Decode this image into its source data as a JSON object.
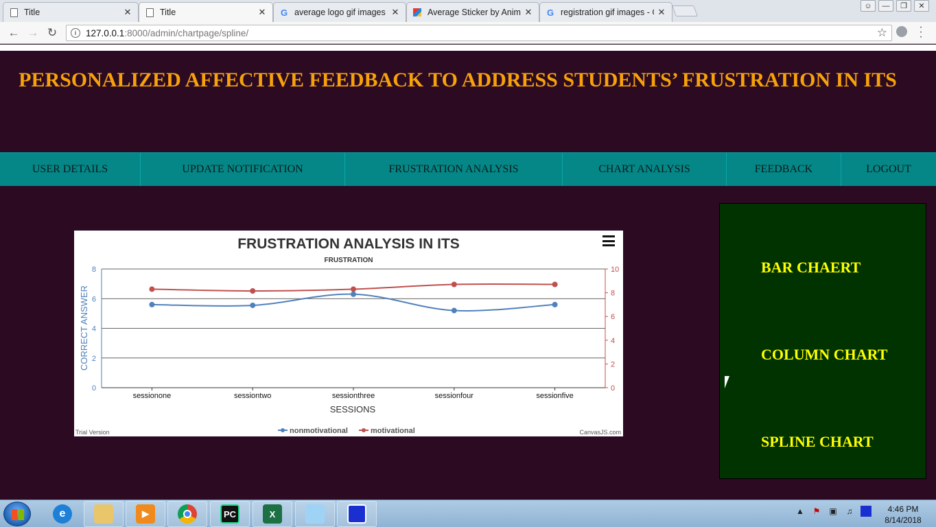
{
  "browser": {
    "tabs": [
      {
        "title": "Title",
        "icon": "page-icon"
      },
      {
        "title": "Title",
        "icon": "page-icon",
        "active": true
      },
      {
        "title": "average logo gif images",
        "icon": "google-icon"
      },
      {
        "title": "Average Sticker by Anima",
        "icon": "sticker-icon"
      },
      {
        "title": "registration gif images - G",
        "icon": "google-icon"
      }
    ],
    "close_glyph": "✕",
    "url_host": "127.0.0.1",
    "url_path": ":8000/admin/chartpage/spline/"
  },
  "site": {
    "title": "PERSONALIZED AFFECTIVE FEEDBACK TO ADDRESS STUDENTS’ FRUSTRATION IN ITS",
    "nav": [
      "USER DETAILS",
      "UPDATE NOTIFICATION",
      "FRUSTRATION ANALYSIS",
      "CHART ANALYSIS",
      "FEEDBACK",
      "LOGOUT"
    ],
    "side_links": [
      "BAR CHAERT",
      "COLUMN CHART",
      "SPLINE CHART"
    ]
  },
  "chart_data": {
    "type": "line",
    "title": "FRUSTRATION ANALYSIS  IN ITS",
    "subtitle": "FRUSTRATION",
    "xlabel": "SESSIONS",
    "ylabel": "CORRECT ANSWER",
    "categories": [
      "sessionone",
      "sessiontwo",
      "sessionthree",
      "sessionfour",
      "sessionfive"
    ],
    "y_left_range": [
      0,
      8
    ],
    "y_left_ticks": [
      0,
      2,
      4,
      6,
      8
    ],
    "y_right_range": [
      0,
      10
    ],
    "y_right_ticks": [
      0,
      2,
      4,
      6,
      8,
      10
    ],
    "grid": true,
    "legend_placement": "bottom-center",
    "series": [
      {
        "name": "nonmotivational",
        "axis": "left",
        "color": "#4f81bc",
        "values": [
          5.6,
          5.55,
          6.3,
          5.2,
          5.6
        ]
      },
      {
        "name": "motivational",
        "axis": "right",
        "color": "#c0504e",
        "values": [
          8.3,
          8.15,
          8.3,
          8.7,
          8.7
        ]
      }
    ],
    "footer_left": "Trial Version",
    "footer_right": "CanvasJS.com"
  },
  "taskbar": {
    "apps": [
      "internet-explorer-icon",
      "file-explorer-icon",
      "media-player-icon",
      "chrome-icon",
      "pycharm-icon",
      "excel-icon",
      "notepad-icon",
      "app-window-icon"
    ],
    "time": "4:46 PM",
    "date": "8/14/2018"
  },
  "colors": {
    "page_bg": "#2b0a22",
    "title": "#f7a20a",
    "nav_bg": "#058787",
    "side_bg": "#003300",
    "side_link": "#ffff00"
  }
}
